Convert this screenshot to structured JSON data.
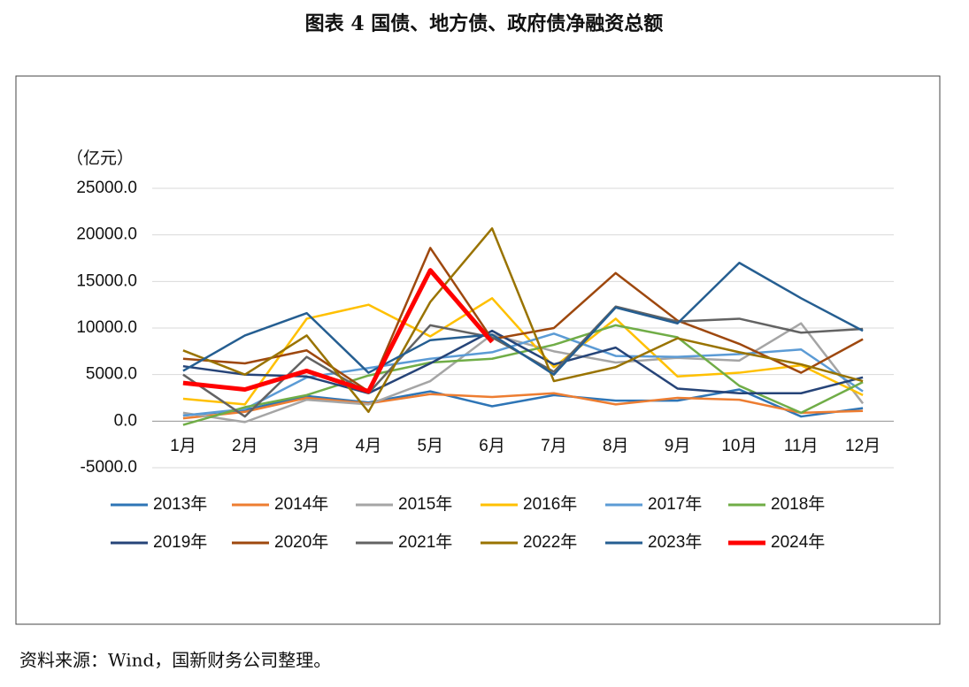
{
  "title": "图表 4  国债、地方债、政府债净融资总额",
  "source": "资料来源：Wind，国新财务公司整理。",
  "chart_data": {
    "type": "line",
    "y_axis_label": "（亿元）",
    "categories": [
      "1月",
      "2月",
      "3月",
      "4月",
      "5月",
      "6月",
      "7月",
      "8月",
      "9月",
      "10月",
      "11月",
      "12月"
    ],
    "series": [
      {
        "name": "2013年",
        "color": "#2e75b6",
        "values": [
          600,
          1200,
          2700,
          2000,
          3200,
          1600,
          2800,
          2200,
          2200,
          3400,
          500,
          1400
        ]
      },
      {
        "name": "2014年",
        "color": "#ed7d31",
        "values": [
          300,
          1000,
          2500,
          1900,
          2900,
          2600,
          3000,
          1800,
          2500,
          2300,
          900,
          1100
        ]
      },
      {
        "name": "2015年",
        "color": "#a5a5a5",
        "values": [
          900,
          -100,
          2300,
          1800,
          4300,
          9300,
          7500,
          6300,
          6800,
          6500,
          10500,
          1900
        ]
      },
      {
        "name": "2016年",
        "color": "#ffc000",
        "values": [
          2400,
          1800,
          11000,
          12500,
          9100,
          13200,
          5800,
          11000,
          4800,
          5200,
          6000,
          2800
        ]
      },
      {
        "name": "2017年",
        "color": "#5b9bd5",
        "values": [
          600,
          1300,
          4700,
          5700,
          6700,
          7400,
          9400,
          7000,
          6900,
          7200,
          7700,
          3200
        ]
      },
      {
        "name": "2018年",
        "color": "#70ad47",
        "values": [
          -400,
          1500,
          2800,
          4900,
          6300,
          6700,
          8200,
          10300,
          9000,
          3800,
          900,
          4200
        ]
      },
      {
        "name": "2019年",
        "color": "#264478",
        "values": [
          5900,
          5000,
          4800,
          3000,
          6200,
          9700,
          6100,
          7900,
          3500,
          3000,
          3000,
          4700
        ]
      },
      {
        "name": "2020年",
        "color": "#9e480e",
        "values": [
          6700,
          6200,
          7600,
          3200,
          18600,
          8800,
          10000,
          15900,
          10800,
          8300,
          5200,
          8800
        ]
      },
      {
        "name": "2021年",
        "color": "#636363",
        "values": [
          5000,
          500,
          6900,
          3000,
          10300,
          9000,
          5300,
          12300,
          10700,
          11000,
          9500,
          9900
        ]
      },
      {
        "name": "2022年",
        "color": "#997300",
        "values": [
          7600,
          5000,
          9200,
          1000,
          12800,
          20700,
          4300,
          5800,
          8900,
          7400,
          6100,
          4300
        ]
      },
      {
        "name": "2023年",
        "color": "#255e91",
        "values": [
          5400,
          9200,
          11600,
          5200,
          8700,
          9300,
          5000,
          12200,
          10500,
          17000,
          13200,
          9700
        ]
      },
      {
        "name": "2024年",
        "color": "#ff0000",
        "values": [
          4100,
          3400,
          5400,
          3200,
          16200,
          8500,
          null,
          null,
          null,
          null,
          null,
          null
        ]
      }
    ],
    "ylim": [
      -5000,
      25000
    ],
    "yticks": [
      {
        "value": -5000,
        "label": "-5000.0"
      },
      {
        "value": 0,
        "label": "0.0"
      },
      {
        "value": 5000,
        "label": "5000.0"
      },
      {
        "value": 10000,
        "label": "10000.0"
      },
      {
        "value": 15000,
        "label": "15000.0"
      },
      {
        "value": 20000,
        "label": "20000.0"
      },
      {
        "value": 25000,
        "label": "25000.0"
      }
    ],
    "grid": true
  }
}
